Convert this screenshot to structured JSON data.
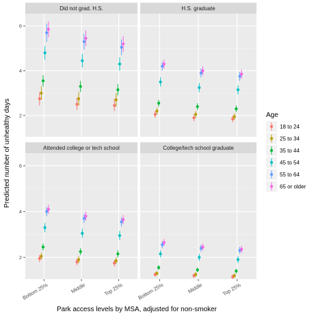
{
  "chart_data": {
    "type": "scatter",
    "subtype": "point-range, faceted 2x2",
    "xlabel": "Park access levels by MSA, adjusted for non-smoker",
    "ylabel": "Predicted number of unhealthy days",
    "categories": [
      "Bottom 25%",
      "Middle",
      "Top 25%"
    ],
    "y_ticks": [
      2,
      4,
      6
    ],
    "ylim": [
      1.05,
      6.55
    ],
    "grid": true,
    "legend": {
      "title": "Age",
      "placement": "right"
    },
    "series_meta": [
      {
        "name": "18 to 24",
        "color": "#F8766D"
      },
      {
        "name": "25 to 34",
        "color": "#B79F00"
      },
      {
        "name": "35 to 44",
        "color": "#00BA38"
      },
      {
        "name": "45 to 54",
        "color": "#00BFC4"
      },
      {
        "name": "55 to 64",
        "color": "#619CFF"
      },
      {
        "name": "65 or older",
        "color": "#F564E3"
      }
    ],
    "panels": [
      {
        "title": "Did not grad. H.S.",
        "series": [
          {
            "name": "18 to 24",
            "values": [
              2.75,
              2.5,
              2.45
            ],
            "lower": [
              2.45,
              2.25,
              2.2
            ],
            "upper": [
              3.05,
              2.8,
              2.75
            ]
          },
          {
            "name": "25 to 34",
            "values": [
              3.0,
              2.75,
              2.7
            ],
            "lower": [
              2.7,
              2.45,
              2.4
            ],
            "upper": [
              3.3,
              3.05,
              3.0
            ]
          },
          {
            "name": "35 to 44",
            "values": [
              3.55,
              3.3,
              3.15
            ],
            "lower": [
              3.3,
              3.05,
              2.9
            ],
            "upper": [
              3.8,
              3.55,
              3.4
            ]
          },
          {
            "name": "45 to 54",
            "values": [
              4.8,
              4.45,
              4.3
            ],
            "lower": [
              4.5,
              4.15,
              4.0
            ],
            "upper": [
              5.1,
              4.75,
              4.6
            ]
          },
          {
            "name": "55 to 64",
            "values": [
              5.7,
              5.3,
              5.05
            ],
            "lower": [
              5.3,
              4.95,
              4.7
            ],
            "upper": [
              6.1,
              5.65,
              5.4
            ]
          },
          {
            "name": "65 or older",
            "values": [
              5.85,
              5.45,
              5.2
            ],
            "lower": [
              5.5,
              5.1,
              4.85
            ],
            "upper": [
              6.2,
              5.8,
              5.55
            ]
          }
        ]
      },
      {
        "title": "H.S. graduate",
        "series": [
          {
            "name": "18 to 24",
            "values": [
              2.05,
              1.9,
              1.85
            ],
            "lower": [
              1.9,
              1.75,
              1.7
            ],
            "upper": [
              2.2,
              2.05,
              2.0
            ]
          },
          {
            "name": "25 to 34",
            "values": [
              2.2,
              2.05,
              1.95
            ],
            "lower": [
              2.05,
              1.9,
              1.8
            ],
            "upper": [
              2.35,
              2.2,
              2.1
            ]
          },
          {
            "name": "35 to 44",
            "values": [
              2.55,
              2.4,
              2.3
            ],
            "lower": [
              2.4,
              2.25,
              2.15
            ],
            "upper": [
              2.7,
              2.55,
              2.45
            ]
          },
          {
            "name": "45 to 54",
            "values": [
              3.5,
              3.25,
              3.15
            ],
            "lower": [
              3.3,
              3.05,
              2.95
            ],
            "upper": [
              3.7,
              3.45,
              3.35
            ]
          },
          {
            "name": "55 to 64",
            "values": [
              4.2,
              3.9,
              3.75
            ],
            "lower": [
              4.0,
              3.7,
              3.55
            ],
            "upper": [
              4.4,
              4.1,
              3.95
            ]
          },
          {
            "name": "65 or older",
            "values": [
              4.3,
              4.0,
              3.85
            ],
            "lower": [
              4.1,
              3.8,
              3.65
            ],
            "upper": [
              4.5,
              4.2,
              4.05
            ]
          }
        ]
      },
      {
        "title": "Attended college or tech school",
        "series": [
          {
            "name": "18 to 24",
            "values": [
              1.95,
              1.8,
              1.75
            ],
            "lower": [
              1.8,
              1.65,
              1.6
            ],
            "upper": [
              2.1,
              1.95,
              1.9
            ]
          },
          {
            "name": "25 to 34",
            "values": [
              2.05,
              1.9,
              1.85
            ],
            "lower": [
              1.9,
              1.75,
              1.7
            ],
            "upper": [
              2.2,
              2.05,
              2.0
            ]
          },
          {
            "name": "35 to 44",
            "values": [
              2.45,
              2.25,
              2.15
            ],
            "lower": [
              2.3,
              2.1,
              2.0
            ],
            "upper": [
              2.6,
              2.4,
              2.3
            ]
          },
          {
            "name": "45 to 54",
            "values": [
              3.3,
              3.05,
              2.95
            ],
            "lower": [
              3.1,
              2.85,
              2.75
            ],
            "upper": [
              3.5,
              3.25,
              3.15
            ]
          },
          {
            "name": "55 to 64",
            "values": [
              4.0,
              3.7,
              3.55
            ],
            "lower": [
              3.8,
              3.5,
              3.35
            ],
            "upper": [
              4.2,
              3.9,
              3.75
            ]
          },
          {
            "name": "65 or older",
            "values": [
              4.1,
              3.8,
              3.65
            ],
            "lower": [
              3.9,
              3.6,
              3.45
            ],
            "upper": [
              4.3,
              4.0,
              3.85
            ]
          }
        ]
      },
      {
        "title": "College/tech school graduate",
        "series": [
          {
            "name": "18 to 24",
            "values": [
              1.25,
              1.2,
              1.15
            ],
            "lower": [
              1.15,
              1.1,
              1.05
            ],
            "upper": [
              1.35,
              1.3,
              1.25
            ]
          },
          {
            "name": "25 to 34",
            "values": [
              1.3,
              1.25,
              1.2
            ],
            "lower": [
              1.2,
              1.15,
              1.1
            ],
            "upper": [
              1.4,
              1.35,
              1.3
            ]
          },
          {
            "name": "35 to 44",
            "values": [
              1.55,
              1.45,
              1.4
            ],
            "lower": [
              1.45,
              1.35,
              1.3
            ],
            "upper": [
              1.65,
              1.55,
              1.5
            ]
          },
          {
            "name": "45 to 54",
            "values": [
              2.15,
              2.0,
              1.9
            ],
            "lower": [
              2.0,
              1.85,
              1.75
            ],
            "upper": [
              2.3,
              2.15,
              2.05
            ]
          },
          {
            "name": "55 to 64",
            "values": [
              2.55,
              2.4,
              2.3
            ],
            "lower": [
              2.4,
              2.25,
              2.15
            ],
            "upper": [
              2.7,
              2.55,
              2.45
            ]
          },
          {
            "name": "65 or older",
            "values": [
              2.65,
              2.45,
              2.35
            ],
            "lower": [
              2.5,
              2.3,
              2.2
            ],
            "upper": [
              2.8,
              2.6,
              2.5
            ]
          }
        ]
      }
    ]
  }
}
